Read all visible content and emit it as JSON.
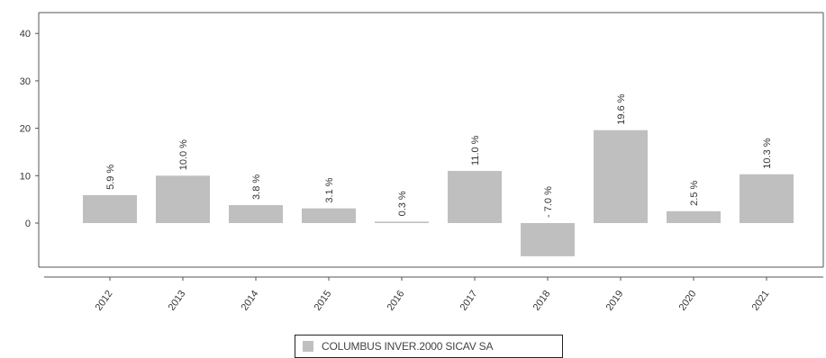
{
  "chart_data": {
    "type": "bar",
    "categories": [
      "2012",
      "2013",
      "2014",
      "2015",
      "2016",
      "2017",
      "2018",
      "2019",
      "2020",
      "2021"
    ],
    "series": [
      {
        "name": "COLUMBUS INVER.2000 SICAV SA",
        "values": [
          5.9,
          10.0,
          3.8,
          3.1,
          0.3,
          11.0,
          -7.0,
          19.6,
          2.5,
          10.3
        ],
        "labels": [
          "5.9 %",
          "10.0 %",
          "3.8 %",
          "3.1 %",
          "0.3 %",
          "11.0 %",
          "- 7.0 %",
          "19.6 %",
          "2.5 %",
          "10.3 %"
        ]
      }
    ],
    "yticks": [
      0,
      10,
      20,
      30,
      40
    ],
    "ylim": [
      -10,
      44
    ],
    "grid": false,
    "legend_position": "bottom-center",
    "colors": {
      "bar": "#bfbfbf",
      "axis": "#555555",
      "text": "#333333"
    }
  }
}
